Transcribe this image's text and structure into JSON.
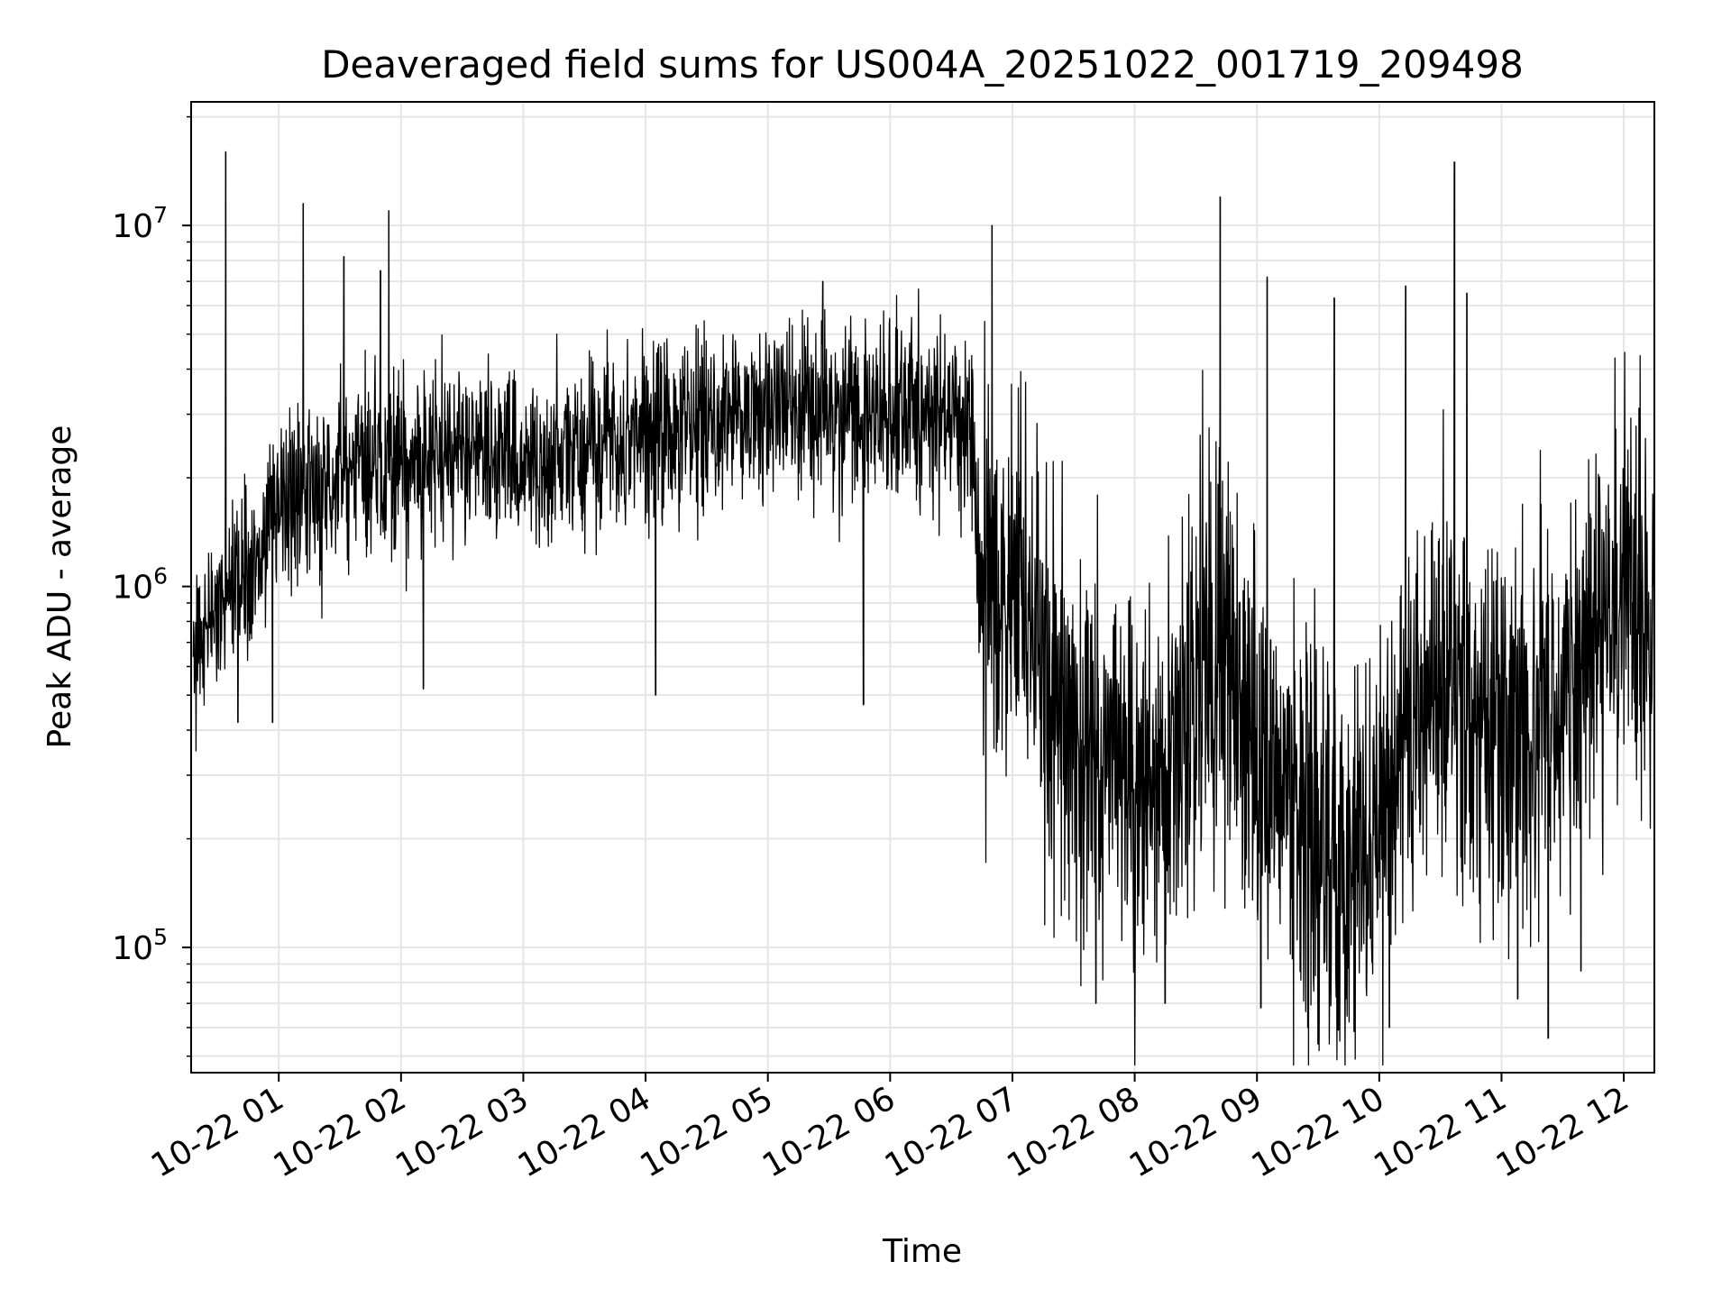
{
  "chart_data": {
    "type": "line",
    "title": "Deaveraged field sums for US004A_20251022_001719_209498",
    "xlabel": "Time",
    "ylabel": "Peak ADU - average",
    "yscale": "log",
    "xlim": [
      "2025-10-22 00:17",
      "2025-10-22 12:15"
    ],
    "ylim": [
      45000,
      22000000
    ],
    "grid": true,
    "colors": {
      "line": "#000000",
      "grid": "#e5e5e5",
      "axes": "#000000"
    },
    "xticks": [
      "10-22 01",
      "10-22 02",
      "10-22 03",
      "10-22 04",
      "10-22 05",
      "10-22 06",
      "10-22 07",
      "10-22 08",
      "10-22 09",
      "10-22 10",
      "10-22 11",
      "10-22 12"
    ],
    "yticks": [
      {
        "base": "10",
        "exp": "5",
        "value": 100000
      },
      {
        "base": "10",
        "exp": "6",
        "value": 1000000
      },
      {
        "base": "10",
        "exp": "7",
        "value": 10000000
      }
    ],
    "series": [
      {
        "values": [
          [
            "2025-10-22 00:18",
            700000
          ],
          [
            "2025-10-22 00:30",
            900000
          ],
          [
            "2025-10-22 00:45",
            1100000
          ],
          [
            "2025-10-22 01:00",
            1700000
          ],
          [
            "2025-10-22 01:15",
            1900000
          ],
          [
            "2025-10-22 01:30",
            2000000
          ],
          [
            "2025-10-22 01:45",
            2100000
          ],
          [
            "2025-10-22 02:00",
            2300000
          ],
          [
            "2025-10-22 02:15",
            2200000
          ],
          [
            "2025-10-22 02:30",
            2400000
          ],
          [
            "2025-10-22 02:45",
            2300000
          ],
          [
            "2025-10-22 03:00",
            2300000
          ],
          [
            "2025-10-22 03:15",
            2200000
          ],
          [
            "2025-10-22 03:30",
            2300000
          ],
          [
            "2025-10-22 03:45",
            2500000
          ],
          [
            "2025-10-22 04:00",
            2600000
          ],
          [
            "2025-10-22 04:15",
            2800000
          ],
          [
            "2025-10-22 04:30",
            2900000
          ],
          [
            "2025-10-22 04:45",
            3000000
          ],
          [
            "2025-10-22 05:00",
            3000000
          ],
          [
            "2025-10-22 05:15",
            3100000
          ],
          [
            "2025-10-22 05:30",
            3000000
          ],
          [
            "2025-10-22 05:45",
            3000000
          ],
          [
            "2025-10-22 06:00",
            3100000
          ],
          [
            "2025-10-22 06:15",
            3000000
          ],
          [
            "2025-10-22 06:30",
            2900000
          ],
          [
            "2025-10-22 06:40",
            2500000
          ],
          [
            "2025-10-22 06:45",
            1000000
          ],
          [
            "2025-10-22 07:00",
            800000
          ],
          [
            "2025-10-22 07:15",
            650000
          ],
          [
            "2025-10-22 07:30",
            450000
          ],
          [
            "2025-10-22 07:45",
            320000
          ],
          [
            "2025-10-22 08:00",
            300000
          ],
          [
            "2025-10-22 08:15",
            320000
          ],
          [
            "2025-10-22 08:30",
            500000
          ],
          [
            "2025-10-22 08:45",
            600000
          ],
          [
            "2025-10-22 09:00",
            350000
          ],
          [
            "2025-10-22 09:15",
            250000
          ],
          [
            "2025-10-22 09:30",
            180000
          ],
          [
            "2025-10-22 09:45",
            170000
          ],
          [
            "2025-10-22 10:00",
            250000
          ],
          [
            "2025-10-22 10:15",
            400000
          ],
          [
            "2025-10-22 10:30",
            500000
          ],
          [
            "2025-10-22 10:45",
            450000
          ],
          [
            "2025-10-22 11:00",
            400000
          ],
          [
            "2025-10-22 11:15",
            420000
          ],
          [
            "2025-10-22 11:30",
            500000
          ],
          [
            "2025-10-22 11:45",
            700000
          ],
          [
            "2025-10-22 12:00",
            900000
          ],
          [
            "2025-10-22 12:15",
            750000
          ]
        ]
      }
    ],
    "spikes": [
      [
        "2025-10-22 00:34",
        16000000
      ],
      [
        "2025-10-22 01:12",
        11500000
      ],
      [
        "2025-10-22 01:32",
        8200000
      ],
      [
        "2025-10-22 01:50",
        7500000
      ],
      [
        "2025-10-22 01:54",
        11000000
      ],
      [
        "2025-10-22 05:27",
        7000000
      ],
      [
        "2025-10-22 06:50",
        10000000
      ],
      [
        "2025-10-22 08:42",
        12000000
      ],
      [
        "2025-10-22 09:05",
        7200000
      ],
      [
        "2025-10-22 09:38",
        6300000
      ],
      [
        "2025-10-22 10:13",
        6800000
      ],
      [
        "2025-10-22 10:37",
        15000000
      ],
      [
        "2025-10-22 10:43",
        6500000
      ]
    ],
    "dips": [
      [
        "2025-10-22 00:40",
        420000
      ],
      [
        "2025-10-22 00:57",
        420000
      ],
      [
        "2025-10-22 02:11",
        520000
      ],
      [
        "2025-10-22 04:05",
        500000
      ],
      [
        "2025-10-22 05:47",
        470000
      ],
      [
        "2025-10-22 07:41",
        70000
      ],
      [
        "2025-10-22 08:15",
        70000
      ],
      [
        "2025-10-22 09:02",
        68000
      ],
      [
        "2025-10-22 09:25",
        60000
      ],
      [
        "2025-10-22 09:40",
        59000
      ],
      [
        "2025-10-22 10:05",
        60000
      ],
      [
        "2025-10-22 11:08",
        72000
      ],
      [
        "2025-10-22 11:23",
        56000
      ],
      [
        "2025-10-22 11:39",
        86000
      ]
    ]
  }
}
